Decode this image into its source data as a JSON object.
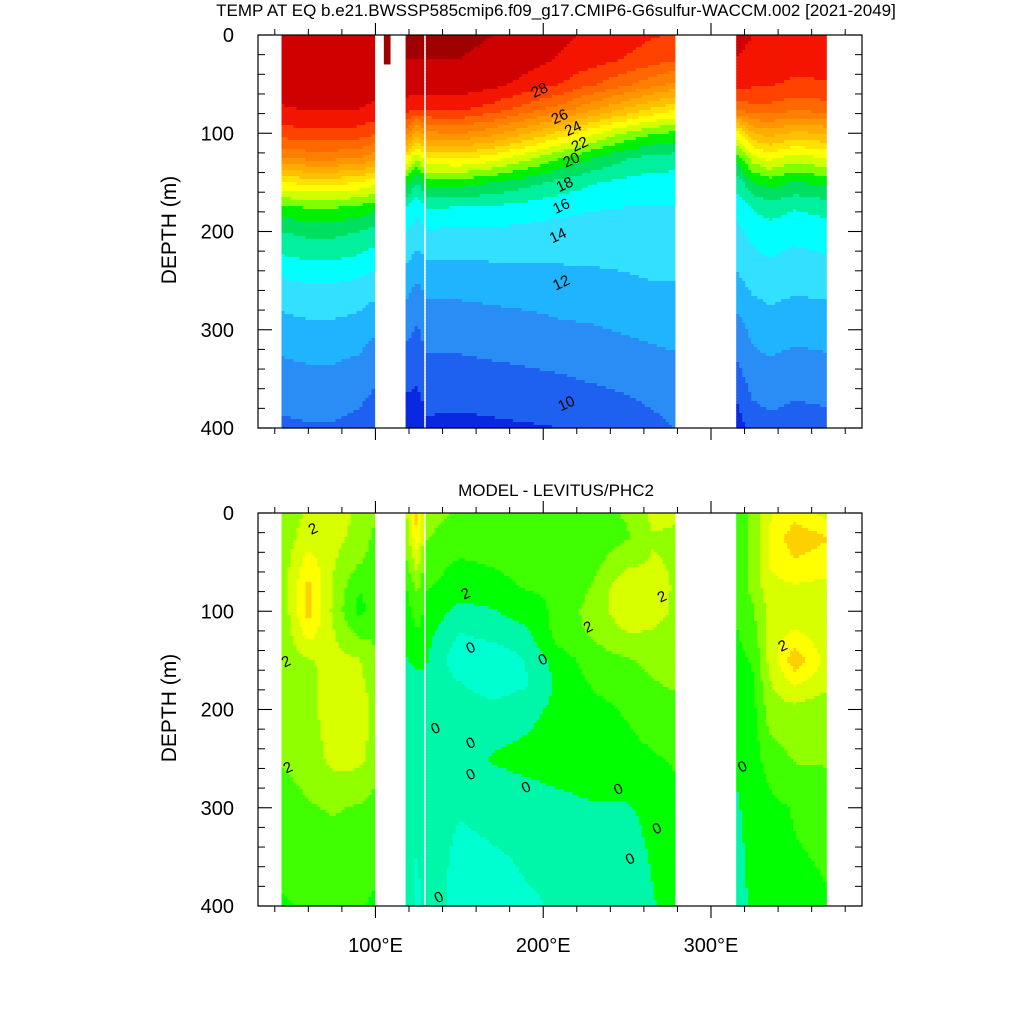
{
  "figure": {
    "title": "TEMP AT EQ b.e21.BWSSP585cmip6.f09_g17.CMIP6-G6sulfur-WACCM.002 [2021-2049]"
  },
  "chart_data": [
    {
      "type": "heatmap",
      "title": "TEMP AT EQ b.e21.BWSSP585cmip6.f09_g17.CMIP6-G6sulfur-WACCM.002 [2021-2049]",
      "xlabel": "",
      "ylabel": "DEPTH (m)",
      "xlim": [
        30,
        390
      ],
      "ylim": [
        400,
        0
      ],
      "y_ticks": [
        0,
        100,
        200,
        300,
        400
      ],
      "x_ticks": [
        "100°E",
        "200°E",
        "300°E"
      ],
      "x_tick_values": [
        100,
        200,
        300
      ],
      "contour_levels_labeled": [
        28,
        26,
        24,
        22,
        20,
        18,
        16,
        14,
        12,
        10
      ],
      "color_range": [
        8,
        30
      ],
      "data_extent_x": [
        [
          44,
          98
        ],
        [
          118,
          128
        ],
        [
          130,
          278
        ],
        [
          315,
          368
        ]
      ],
      "ocean_grid": {
        "longitudes": [
          45,
          60,
          75,
          90,
          98,
          118,
          125,
          130,
          150,
          170,
          190,
          210,
          230,
          250,
          265,
          278,
          315,
          325,
          335,
          350,
          368
        ],
        "depths": [
          0,
          25,
          50,
          75,
          100,
          125,
          150,
          175,
          200,
          250,
          300,
          350,
          400
        ],
        "temps": [
          [
            29.5,
            29.5,
            29.5,
            29.4,
            29.4,
            29.6,
            29.6,
            29.6,
            29.6,
            29.5,
            29.1,
            28.7,
            28.3,
            27.9,
            27.6,
            27.4,
            28.7,
            28.5,
            28.3,
            28.1,
            28.2
          ],
          [
            29.4,
            29.4,
            29.4,
            29.3,
            29.3,
            29.5,
            29.5,
            29.5,
            29.5,
            29.4,
            28.9,
            28.4,
            27.9,
            27.4,
            27.0,
            26.6,
            28.5,
            28.3,
            28.1,
            27.9,
            28.0
          ],
          [
            29.1,
            29.2,
            29.2,
            29.1,
            29.0,
            29.2,
            29.1,
            29.1,
            29.2,
            28.8,
            28.2,
            27.5,
            26.6,
            25.7,
            24.9,
            24.3,
            27.8,
            27.7,
            27.6,
            27.3,
            27.4
          ],
          [
            28.4,
            28.6,
            28.6,
            28.5,
            28.3,
            28.0,
            27.5,
            27.7,
            27.7,
            27.1,
            26.1,
            25.1,
            23.7,
            22.4,
            21.4,
            20.8,
            25.8,
            26.2,
            26.2,
            25.8,
            26.0
          ],
          [
            27.0,
            27.3,
            27.3,
            27.1,
            26.7,
            25.0,
            23.0,
            24.3,
            24.6,
            23.8,
            22.6,
            21.2,
            19.7,
            18.3,
            17.6,
            17.3,
            20.0,
            22.4,
            23.0,
            22.2,
            22.6
          ],
          [
            24.5,
            24.8,
            24.8,
            24.5,
            24.0,
            20.5,
            18.5,
            20.5,
            20.7,
            20.0,
            18.8,
            17.6,
            16.5,
            15.6,
            15.2,
            15.1,
            16.8,
            19.1,
            19.8,
            19.0,
            19.5
          ],
          [
            20.5,
            20.8,
            20.8,
            20.5,
            20.0,
            17.0,
            15.5,
            17.0,
            17.0,
            16.5,
            15.9,
            15.2,
            14.6,
            14.2,
            14.0,
            14.0,
            14.8,
            16.4,
            17.0,
            16.4,
            16.8
          ],
          [
            17.3,
            17.6,
            17.6,
            17.3,
            16.9,
            14.6,
            13.7,
            14.6,
            14.5,
            14.4,
            14.1,
            13.8,
            13.6,
            13.5,
            13.5,
            13.5,
            13.8,
            14.6,
            15.0,
            14.6,
            14.9
          ],
          [
            15.5,
            15.8,
            15.8,
            15.5,
            15.2,
            13.6,
            13.0,
            13.4,
            13.3,
            13.3,
            13.2,
            13.1,
            13.0,
            13.0,
            13.1,
            13.1,
            13.2,
            13.8,
            14.1,
            13.8,
            14.0
          ],
          [
            13.4,
            13.6,
            13.6,
            13.4,
            13.1,
            12.0,
            11.5,
            11.9,
            11.9,
            12.0,
            12.1,
            12.2,
            12.3,
            12.4,
            12.5,
            12.5,
            12.3,
            12.8,
            13.0,
            12.8,
            12.9
          ],
          [
            12.0,
            12.2,
            12.2,
            12.0,
            11.7,
            10.8,
            10.4,
            10.9,
            10.9,
            11.0,
            11.1,
            11.3,
            11.4,
            11.6,
            11.7,
            11.8,
            11.0,
            11.8,
            12.0,
            11.8,
            11.9
          ],
          [
            11.1,
            11.2,
            11.2,
            11.0,
            10.7,
            9.8,
            9.6,
            10.1,
            10.1,
            10.2,
            10.3,
            10.4,
            10.6,
            10.8,
            11.0,
            11.1,
            10.1,
            10.9,
            11.1,
            10.9,
            11.0
          ],
          [
            10.3,
            10.4,
            10.4,
            10.2,
            9.9,
            8.8,
            8.8,
            9.3,
            9.2,
            9.3,
            9.4,
            9.5,
            9.6,
            9.9,
            10.2,
            10.5,
            8.8,
            10.0,
            10.2,
            10.0,
            10.1
          ]
        ]
      },
      "marginal_seas": [
        {
          "lon_range": [
            105,
            109
          ],
          "depth_range": [
            0,
            30
          ],
          "temp": 29.6
        }
      ]
    },
    {
      "type": "heatmap",
      "title": "MODEL - LEVITUS/PHC2",
      "xlabel": "",
      "ylabel": "DEPTH (m)",
      "xlim": [
        30,
        390
      ],
      "ylim": [
        400,
        0
      ],
      "y_ticks": [
        0,
        100,
        200,
        300,
        400
      ],
      "x_ticks": [
        "100°E",
        "200°E",
        "300°E"
      ],
      "x_tick_values": [
        100,
        200,
        300
      ],
      "contour_levels_labeled": [
        2,
        0
      ],
      "color_range": [
        -3,
        5
      ],
      "data_extent_x": [
        [
          44,
          98
        ],
        [
          118,
          128
        ],
        [
          130,
          278
        ],
        [
          315,
          368
        ]
      ],
      "ocean_grid": {
        "longitudes": [
          45,
          60,
          75,
          90,
          98,
          118,
          125,
          130,
          150,
          170,
          190,
          210,
          230,
          250,
          265,
          278,
          315,
          325,
          335,
          350,
          368
        ],
        "depths": [
          0,
          25,
          50,
          75,
          100,
          125,
          150,
          175,
          200,
          250,
          300,
          350,
          400
        ],
        "diffs": [
          [
            2.0,
            2.3,
            2.4,
            2.2,
            1.8,
            2.1,
            3.6,
            1.9,
            1.7,
            1.6,
            1.6,
            1.5,
            1.6,
            1.8,
            2.4,
            2.3,
            1.4,
            1.9,
            2.7,
            3.0,
            2.6
          ],
          [
            2.0,
            2.5,
            2.4,
            2.1,
            1.7,
            1.9,
            3.2,
            1.8,
            1.5,
            1.5,
            1.5,
            1.4,
            1.5,
            1.7,
            2.2,
            2.2,
            1.4,
            1.9,
            2.8,
            3.6,
            3.3
          ],
          [
            2.0,
            3.0,
            2.3,
            1.8,
            1.6,
            1.6,
            2.5,
            1.5,
            1.2,
            1.3,
            1.4,
            1.3,
            1.6,
            2.1,
            2.3,
            2.2,
            1.4,
            1.9,
            2.8,
            3.2,
            3.0
          ],
          [
            2.0,
            3.4,
            2.2,
            1.3,
            1.3,
            1.2,
            1.9,
            1.3,
            1.0,
            1.1,
            1.3,
            1.3,
            1.8,
            2.7,
            2.5,
            2.2,
            1.4,
            1.9,
            2.6,
            2.7,
            2.6
          ],
          [
            1.9,
            3.5,
            2.1,
            1.1,
            1.4,
            1.0,
            1.5,
            1.1,
            0.6,
            0.7,
            1.0,
            1.4,
            2.0,
            2.6,
            2.4,
            2.2,
            1.3,
            1.7,
            2.4,
            2.4,
            2.4
          ],
          [
            1.9,
            2.9,
            2.3,
            1.7,
            1.7,
            0.8,
            1.2,
            0.9,
            0.2,
            0.4,
            0.6,
            1.5,
            1.8,
            2.2,
            2.2,
            2.1,
            1.2,
            1.5,
            2.5,
            2.9,
            2.5
          ],
          [
            1.9,
            2.2,
            2.4,
            2.3,
            1.9,
            0.7,
            0.9,
            0.8,
            -0.1,
            -0.2,
            0.3,
            1.0,
            1.5,
            1.7,
            1.9,
            2.0,
            1.1,
            1.3,
            2.4,
            3.6,
            2.6
          ],
          [
            1.9,
            2.1,
            2.5,
            2.4,
            2.1,
            0.6,
            0.5,
            0.7,
            0.3,
            0.0,
            0.2,
            0.9,
            1.3,
            1.5,
            1.7,
            1.8,
            1.0,
            1.2,
            2.2,
            2.8,
            2.4
          ],
          [
            1.9,
            2.1,
            2.5,
            2.5,
            2.2,
            0.6,
            0.4,
            0.6,
            0.5,
            0.4,
            0.6,
            0.9,
            1.1,
            1.3,
            1.5,
            1.6,
            0.9,
            1.1,
            2.0,
            2.1,
            1.9
          ],
          [
            1.8,
            2.0,
            2.4,
            2.4,
            2.1,
            0.6,
            0.3,
            0.6,
            0.5,
            0.8,
            0.9,
            1.0,
            1.1,
            1.1,
            1.2,
            1.3,
            0.8,
            1.0,
            1.5,
            1.8,
            1.8
          ],
          [
            1.5,
            1.7,
            1.8,
            1.7,
            1.6,
            0.6,
            0.3,
            0.5,
            0.3,
            0.4,
            0.5,
            0.6,
            0.7,
            0.7,
            0.9,
            1.1,
            0.7,
            0.9,
            1.1,
            1.3,
            1.5
          ],
          [
            1.4,
            1.5,
            1.5,
            1.5,
            1.4,
            0.7,
            0.2,
            0.6,
            0.1,
            0.2,
            0.3,
            0.3,
            0.5,
            0.5,
            0.8,
            1.0,
            0.6,
            0.9,
            1.0,
            1.2,
            1.3
          ],
          [
            1.2,
            1.3,
            1.3,
            1.3,
            1.2,
            0.8,
            0.1,
            0.6,
            0.0,
            0.1,
            0.2,
            0.3,
            0.4,
            0.5,
            0.7,
            1.0,
            0.6,
            0.8,
            0.9,
            1.1,
            1.2
          ]
        ]
      },
      "marginal_seas": []
    }
  ],
  "contour_labels": [
    [
      {
        "text": "28",
        "lon": 198,
        "depth": 57
      },
      {
        "text": "26",
        "lon": 210,
        "depth": 84
      },
      {
        "text": "24",
        "lon": 218,
        "depth": 96
      },
      {
        "text": "22",
        "lon": 222,
        "depth": 112
      },
      {
        "text": "20",
        "lon": 217,
        "depth": 128
      },
      {
        "text": "18",
        "lon": 213,
        "depth": 153
      },
      {
        "text": "16",
        "lon": 211,
        "depth": 175
      },
      {
        "text": "14",
        "lon": 209,
        "depth": 205
      },
      {
        "text": "12",
        "lon": 211,
        "depth": 253
      },
      {
        "text": "10",
        "lon": 214,
        "depth": 376
      }
    ],
    [
      {
        "text": "2",
        "lon": 63,
        "depth": 17
      },
      {
        "text": "2",
        "lon": 47,
        "depth": 152
      },
      {
        "text": "2",
        "lon": 48,
        "depth": 260
      },
      {
        "text": "2",
        "lon": 154,
        "depth": 83
      },
      {
        "text": "0",
        "lon": 157,
        "depth": 138
      },
      {
        "text": "0",
        "lon": 200,
        "depth": 150
      },
      {
        "text": "2",
        "lon": 227,
        "depth": 117
      },
      {
        "text": "2",
        "lon": 271,
        "depth": 86
      },
      {
        "text": "2",
        "lon": 343,
        "depth": 136
      },
      {
        "text": "0",
        "lon": 136,
        "depth": 220
      },
      {
        "text": "0",
        "lon": 157,
        "depth": 235
      },
      {
        "text": "0",
        "lon": 157,
        "depth": 267
      },
      {
        "text": "0",
        "lon": 190,
        "depth": 280
      },
      {
        "text": "0",
        "lon": 245,
        "depth": 282
      },
      {
        "text": "0",
        "lon": 268,
        "depth": 322
      },
      {
        "text": "0",
        "lon": 252,
        "depth": 353
      },
      {
        "text": "0",
        "lon": 319,
        "depth": 259
      },
      {
        "text": "0",
        "lon": 138,
        "depth": 392
      }
    ]
  ]
}
